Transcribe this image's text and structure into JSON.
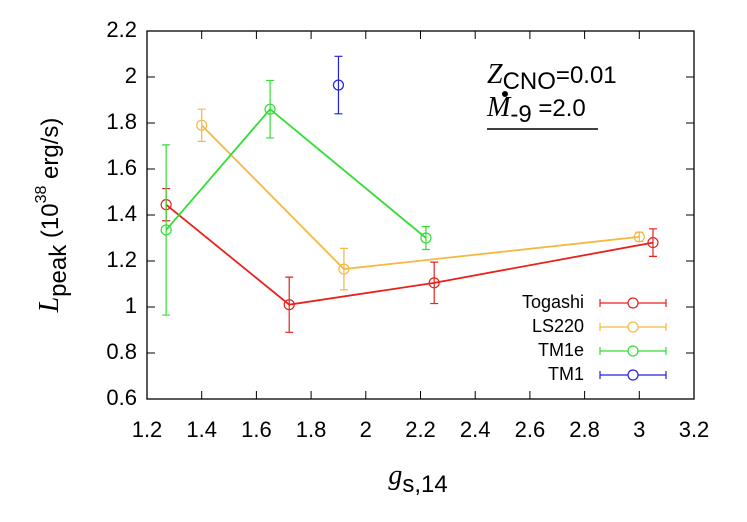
{
  "chart_data": {
    "type": "errorbar",
    "xlabel": {
      "main": "g",
      "sub": "s,14"
    },
    "ylabel": {
      "main": "L",
      "sub": "peak",
      "pre": " (10",
      "sup": "38",
      "post": " erg/s)"
    },
    "annotations": [
      {
        "main": "Z",
        "sub": "CNO",
        "rest": "=0.01"
      },
      {
        "main": "M",
        "sub": "-9",
        "rest": " =2.0"
      }
    ],
    "xlim": [
      1.2,
      3.2
    ],
    "xticks": [
      1.2,
      1.4,
      1.6,
      1.8,
      2,
      2.2,
      2.4,
      2.6,
      2.8,
      3,
      3.2
    ],
    "ylim": [
      0.6,
      2.2
    ],
    "yticks": [
      0.6,
      0.8,
      1,
      1.2,
      1.4,
      1.6,
      1.8,
      2,
      2.2
    ],
    "legend": "bottom-right",
    "series": [
      {
        "name": "Togashi",
        "color": "#e8211c",
        "connect": true,
        "x": [
          1.27,
          1.72,
          2.25,
          3.05
        ],
        "values": [
          1.445,
          1.01,
          1.105,
          1.28
        ],
        "errors": [
          0.07,
          0.12,
          0.09,
          0.06
        ]
      },
      {
        "name": "LS220",
        "color": "#f5b942",
        "connect": true,
        "x": [
          1.4,
          1.92,
          3.0
        ],
        "values": [
          1.79,
          1.165,
          1.305
        ],
        "errors": [
          0.07,
          0.09,
          0.02
        ]
      },
      {
        "name": "TM1e",
        "color": "#33dd33",
        "connect": true,
        "x": [
          1.27,
          1.65,
          2.22
        ],
        "values": [
          1.335,
          1.86,
          1.3
        ],
        "errors": [
          0.37,
          0.125,
          0.05
        ]
      },
      {
        "name": "TM1",
        "color": "#2222dd",
        "connect": false,
        "x": [
          1.9
        ],
        "values": [
          1.965
        ],
        "errors": [
          0.125
        ]
      }
    ]
  }
}
